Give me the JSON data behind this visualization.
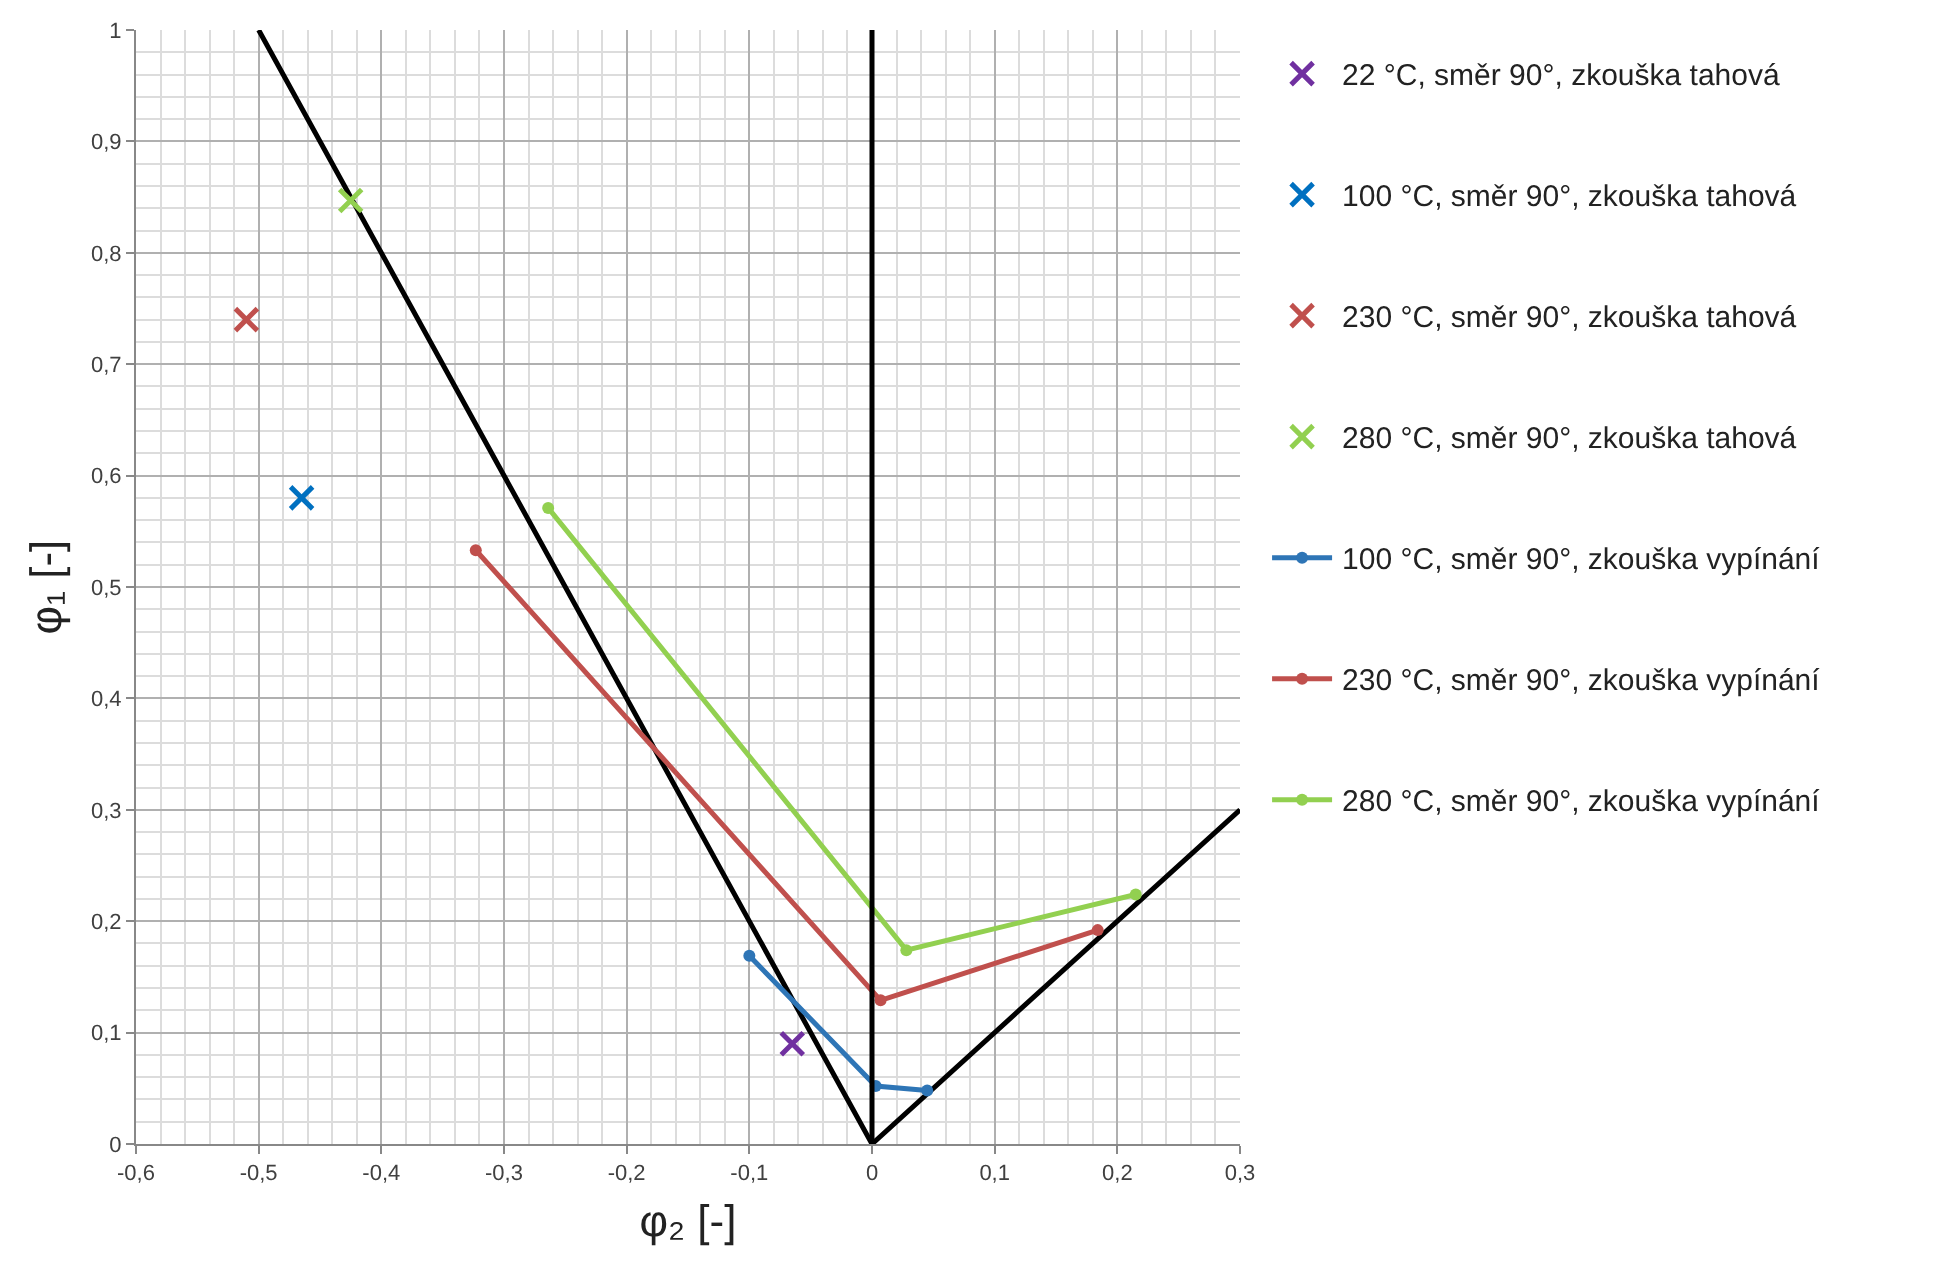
{
  "chart_data": {
    "type": "scatter",
    "xlabel": "φ₂ [-]",
    "ylabel": "φ₁ [-]",
    "xlim": [
      -0.6,
      0.3
    ],
    "xticks": [
      {
        "value": -0.6,
        "label": "-0,6"
      },
      {
        "value": -0.5,
        "label": "-0,5"
      },
      {
        "value": -0.4,
        "label": "-0,4"
      },
      {
        "value": -0.3,
        "label": "-0,3"
      },
      {
        "value": -0.2,
        "label": "-0,2"
      },
      {
        "value": -0.1,
        "label": "-0,1"
      },
      0,
      {
        "value": 0.1,
        "label": "0,1"
      },
      {
        "value": 0.2,
        "label": "0,2"
      },
      {
        "value": 0.3,
        "label": "0,3"
      }
    ],
    "ylim": [
      0,
      1
    ],
    "yticks": [
      0,
      {
        "value": 0.1,
        "label": "0,1"
      },
      {
        "value": 0.2,
        "label": "0,2"
      },
      {
        "value": 0.3,
        "label": "0,3"
      },
      {
        "value": 0.4,
        "label": "0,4"
      },
      {
        "value": 0.5,
        "label": "0,5"
      },
      {
        "value": 0.6,
        "label": "0,6"
      },
      {
        "value": 0.7,
        "label": "0,7"
      },
      {
        "value": 0.8,
        "label": "0,8"
      },
      {
        "value": 0.9,
        "label": "0,9"
      },
      1
    ],
    "grid": true,
    "legend": "right",
    "ref_lines": [
      {
        "axis": "x",
        "value": 0,
        "color": "#000000"
      }
    ],
    "series": [
      {
        "name": "22 °C, směr 90°, zkouška tahová",
        "color": "#7030a0",
        "marker": "cross",
        "x": [
          -0.065
        ],
        "values": [
          0.09
        ]
      },
      {
        "name": "100 °C, směr 90°, zkouška tahová",
        "color": "#0070c0",
        "marker": "cross",
        "x": [
          -0.465
        ],
        "values": [
          0.58
        ]
      },
      {
        "name": "230 °C, směr 90°, zkouška tahová",
        "color": "#c0504d",
        "marker": "cross",
        "x": [
          -0.51
        ],
        "values": [
          0.74
        ]
      },
      {
        "name": "280 °C, směr 90°, zkouška tahová",
        "color": "#92d050",
        "marker": "cross",
        "x": [
          -0.425
        ],
        "values": [
          0.847
        ]
      },
      {
        "type": "line",
        "name": "100 °C, směr 90°, zkouška vypínání",
        "color": "#2e75b6",
        "marker": "circle",
        "x": [
          -0.1,
          0.003,
          0.045
        ],
        "values": [
          0.169,
          0.052,
          0.048
        ]
      },
      {
        "type": "line",
        "name": "230 °C, směr 90°, zkouška vypínání",
        "color": "#c0504d",
        "marker": "circle",
        "x": [
          -0.323,
          0.007,
          0.184
        ],
        "values": [
          0.533,
          0.129,
          0.192
        ]
      },
      {
        "type": "line",
        "name": "280 °C, směr 90°, zkouška vypínání",
        "color": "#92d050",
        "marker": "circle",
        "x": [
          -0.264,
          0.028,
          0.215
        ],
        "values": [
          0.571,
          0.174,
          0.224
        ]
      },
      {
        "type": "line",
        "color": "#000000",
        "marker": "none",
        "x": [
          -0.5,
          0,
          0.3
        ],
        "values": [
          1,
          0,
          0.3
        ]
      }
    ]
  }
}
